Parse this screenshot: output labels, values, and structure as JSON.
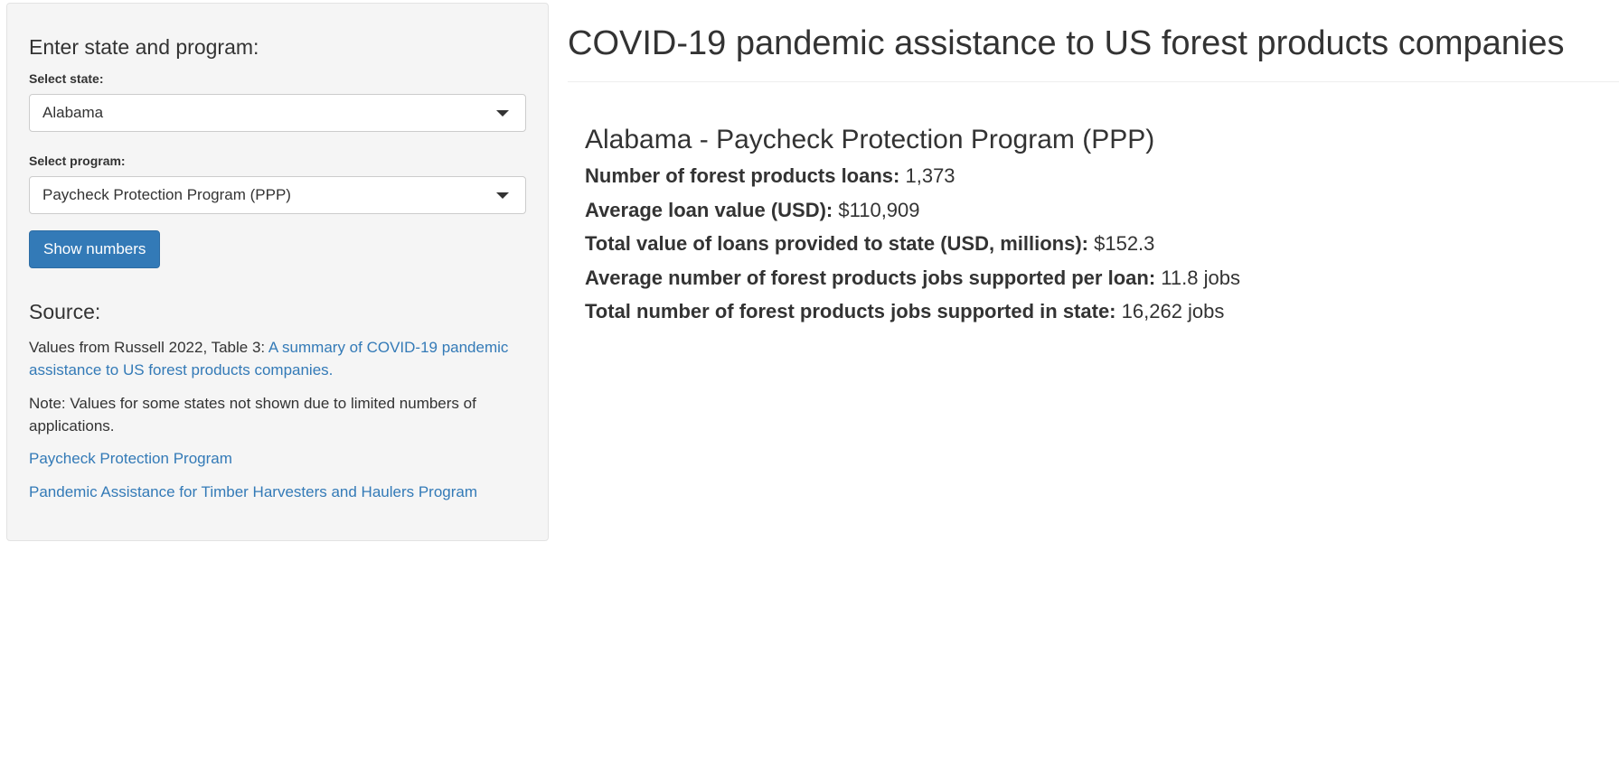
{
  "sidebar": {
    "heading": "Enter state and program:",
    "state_label": "Select state:",
    "state_value": "Alabama",
    "program_label": "Select program:",
    "program_value": "Paycheck Protection Program (PPP)",
    "button_label": "Show numbers",
    "source_heading": "Source:",
    "source_prefix": "Values from Russell 2022, Table 3: ",
    "source_link": "A summary of COVID-19 pandemic assistance to US forest products companies.",
    "note": "Note: Values for some states not shown due to limited numbers of applications.",
    "link_ppp": "Paycheck Protection Program",
    "link_pathh": "Pandemic Assistance for Timber Harvesters and Haulers Program"
  },
  "main": {
    "title": "COVID-19 pandemic assistance to US forest products companies",
    "result_title": "Alabama - Paycheck Protection Program (PPP)",
    "stats": [
      {
        "label": "Number of forest products loans:",
        "value": "1,373"
      },
      {
        "label": "Average loan value (USD):",
        "value": "$110,909"
      },
      {
        "label": "Total value of loans provided to state (USD, millions):",
        "value": "$152.3"
      },
      {
        "label": "Average number of forest products jobs supported per loan:",
        "value": "11.8 jobs"
      },
      {
        "label": "Total number of forest products jobs supported in state:",
        "value": "16,262 jobs"
      }
    ]
  },
  "colors": {
    "accent": "#337ab7",
    "sidebar_bg": "#f5f5f5",
    "text": "#333333"
  },
  "icons": {
    "dropdown": "caret-down-icon"
  }
}
